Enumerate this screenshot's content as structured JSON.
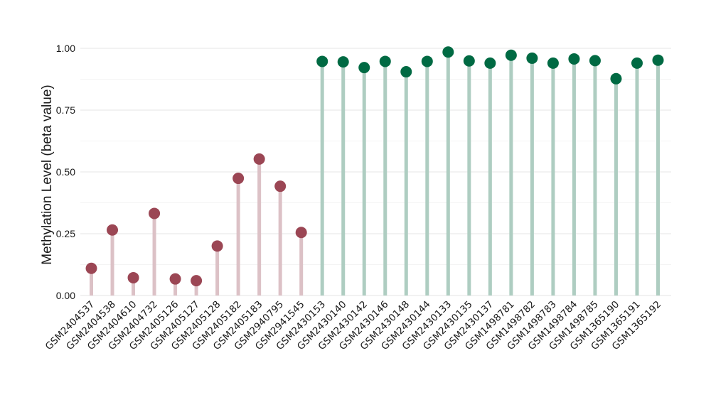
{
  "chart_data": {
    "type": "lollipop",
    "title": "",
    "xlabel": "",
    "ylabel": "Methylation Level (beta value)",
    "ylim": [
      0,
      1.0
    ],
    "yticks": [
      0.0,
      0.25,
      0.5,
      0.75,
      1.0
    ],
    "ytick_labels": [
      "0.00",
      "0.25",
      "0.50",
      "0.75",
      "1.00"
    ],
    "grid": true,
    "group_colors": {
      "low": {
        "point": "#9b4654",
        "stem": "#dcc1c6"
      },
      "high": {
        "point": "#006a43",
        "stem": "#aecdc1"
      }
    },
    "categories": [
      "GSM2404537",
      "GSM2404538",
      "GSM2404610",
      "GSM2404732",
      "GSM2405126",
      "GSM2405127",
      "GSM2405128",
      "GSM2405182",
      "GSM2405183",
      "GSM2940795",
      "GSM2941545",
      "GSM2430153",
      "GSM2430140",
      "GSM2430142",
      "GSM2430146",
      "GSM2430148",
      "GSM2430144",
      "GSM2430133",
      "GSM2430135",
      "GSM2430137",
      "GSM1498781",
      "GSM1498782",
      "GSM1498783",
      "GSM1498784",
      "GSM1498785",
      "GSM1365190",
      "GSM1365191",
      "GSM1365192"
    ],
    "values": [
      0.11,
      0.265,
      0.072,
      0.332,
      0.067,
      0.06,
      0.2,
      0.474,
      0.552,
      0.442,
      0.255,
      0.947,
      0.945,
      0.922,
      0.947,
      0.905,
      0.947,
      0.985,
      0.949,
      0.94,
      0.972,
      0.96,
      0.94,
      0.957,
      0.95,
      0.877,
      0.94,
      0.952
    ],
    "groups": [
      "low",
      "low",
      "low",
      "low",
      "low",
      "low",
      "low",
      "low",
      "low",
      "low",
      "low",
      "high",
      "high",
      "high",
      "high",
      "high",
      "high",
      "high",
      "high",
      "high",
      "high",
      "high",
      "high",
      "high",
      "high",
      "high",
      "high",
      "high"
    ]
  }
}
